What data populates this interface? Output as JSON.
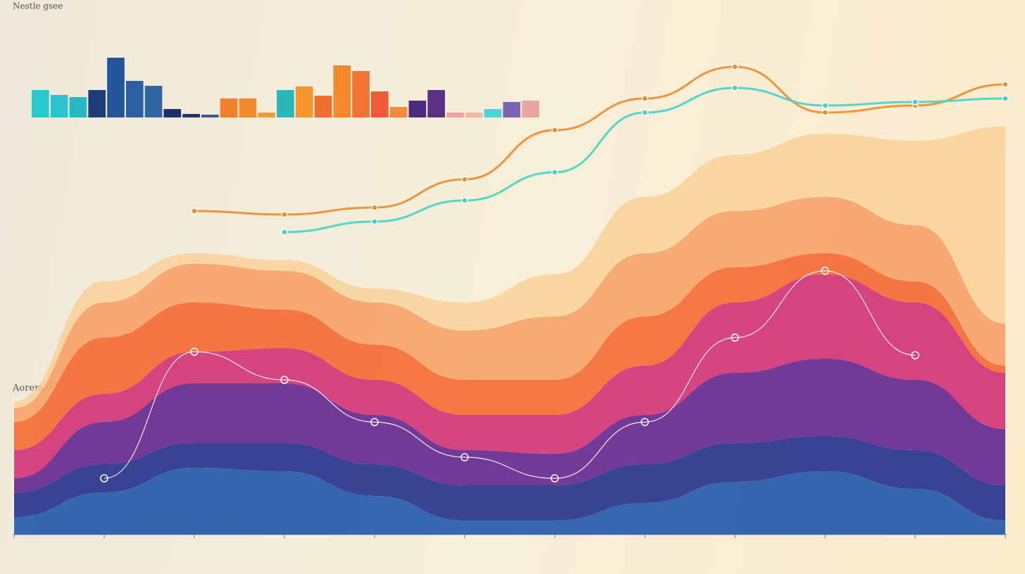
{
  "chart_data": [
    {
      "type": "bar",
      "title": "Nestle gsee",
      "values": [
        39,
        32,
        29,
        39,
        85,
        52,
        45,
        12,
        5,
        4,
        27,
        27,
        7,
        39,
        44,
        31,
        74,
        66,
        37,
        15,
        24,
        39,
        7,
        7,
        12,
        22,
        24
      ],
      "colors": [
        "#27c9cf",
        "#2cc3cc",
        "#2ab7c4",
        "#1e3d7a",
        "#24559a",
        "#2a5fa0",
        "#2f66a6",
        "#1d2f6e",
        "#24326e",
        "#3a5aa6",
        "#f2802a",
        "#f28a2c",
        "#f39a38",
        "#2cb6b8",
        "#f5962c",
        "#f26e2e",
        "#f5872d",
        "#f27433",
        "#f25a38",
        "#f48a3a",
        "#4a2a7a",
        "#5b2f86",
        "#f4a0a0",
        "#f5b6a4",
        "#4fd2da",
        "#7d63b6",
        "#eba6a0"
      ],
      "ylim": [
        0,
        90
      ]
    },
    {
      "type": "stream",
      "title": "Aoremall",
      "categories": [
        null,
        null,
        null,
        null,
        null,
        null,
        null,
        null,
        null,
        null,
        null,
        null
      ],
      "series": [
        {
          "color": "#2b5fae",
          "values": [
            5,
            12,
            19,
            18,
            11,
            4,
            4,
            9,
            15,
            18,
            13,
            4
          ]
        },
        {
          "color": "#2e3a8f",
          "values": [
            7,
            8,
            7,
            8,
            9,
            10,
            10,
            11,
            11,
            10,
            11,
            10
          ]
        },
        {
          "color": "#6b2f94",
          "values": [
            4,
            12,
            17,
            17,
            14,
            10,
            9,
            14,
            20,
            22,
            20,
            16
          ]
        },
        {
          "color": "#d23b7c",
          "values": [
            8,
            8,
            9,
            10,
            10,
            10,
            11,
            14,
            20,
            24,
            22,
            16
          ]
        },
        {
          "color": "#f4703a",
          "values": [
            8,
            16,
            14,
            11,
            10,
            10,
            10,
            14,
            10,
            6,
            6,
            2
          ]
        },
        {
          "color": "#f8a56e",
          "values": [
            4,
            10,
            11,
            11,
            12,
            14,
            18,
            18,
            16,
            16,
            16,
            12
          ]
        },
        {
          "color": "#f9cf95",
          "values": [
            2,
            6,
            3,
            3,
            4,
            8,
            12,
            16,
            16,
            18,
            24,
            56
          ]
        }
      ],
      "ylim": [
        0,
        140
      ]
    },
    {
      "type": "line",
      "categories": [
        null,
        null,
        null,
        null,
        null,
        null,
        null,
        null,
        null,
        null,
        null,
        null
      ],
      "series": [
        {
          "color": "#f08a2a",
          "values": [
            null,
            null,
            92,
            91,
            93,
            101,
            115,
            124,
            133,
            120,
            122,
            128
          ]
        },
        {
          "color": "#43d3c8",
          "values": [
            null,
            null,
            null,
            86,
            89,
            95,
            103,
            120,
            127,
            122,
            123,
            124
          ]
        },
        {
          "color": "#ffffff",
          "values": [
            null,
            16,
            52,
            44,
            32,
            22,
            16,
            32,
            56,
            75,
            51,
            null
          ]
        }
      ],
      "ylim": [
        0,
        140
      ]
    }
  ]
}
